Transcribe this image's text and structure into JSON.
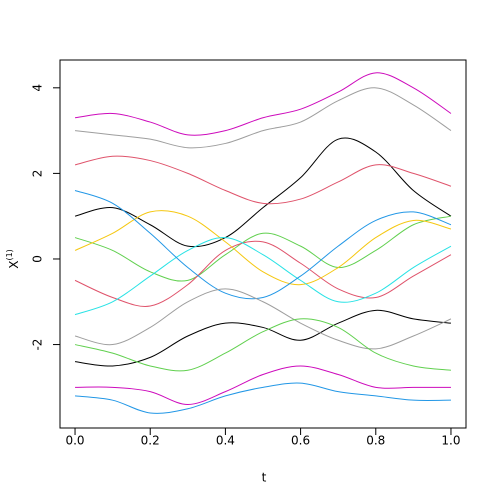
{
  "chart_data": {
    "type": "line",
    "x_label": "t",
    "y_label": "X",
    "y_label_sup": "(1)",
    "x": [
      0,
      0.1,
      0.2,
      0.3,
      0.4,
      0.5,
      0.6,
      0.7,
      0.8,
      0.9,
      1.0
    ],
    "xlim": [
      -0.04,
      1.04
    ],
    "xticks": [
      {
        "value": 0,
        "label": "0.0"
      },
      {
        "value": 0.2,
        "label": "0.2"
      },
      {
        "value": 0.4,
        "label": "0.4"
      },
      {
        "value": 0.6,
        "label": "0.6"
      },
      {
        "value": 0.8,
        "label": "0.8"
      },
      {
        "value": 1,
        "label": "1.0"
      }
    ],
    "ylim": [
      -3.95,
      4.65
    ],
    "yticks": [
      -2,
      0,
      2,
      4
    ],
    "series": [
      {
        "color": "#CD0BBC",
        "values": [
          3.3,
          3.4,
          3.2,
          2.9,
          3.0,
          3.3,
          3.5,
          3.9,
          4.35,
          4.0,
          3.4
        ]
      },
      {
        "color": "#9E9E9E",
        "values": [
          3.0,
          2.9,
          2.8,
          2.6,
          2.7,
          3.0,
          3.2,
          3.7,
          4.0,
          3.6,
          3.0
        ]
      },
      {
        "color": "#2297E6",
        "values": [
          -3.2,
          -3.3,
          -3.6,
          -3.5,
          -3.2,
          -3.0,
          -2.9,
          -3.1,
          -3.2,
          -3.3,
          -3.3
        ]
      },
      {
        "color": "#CD0BBC",
        "values": [
          -3.0,
          -3.0,
          -3.1,
          -3.4,
          -3.1,
          -2.7,
          -2.5,
          -2.7,
          -3.0,
          -3.0,
          -3.0
        ]
      },
      {
        "color": "#000000",
        "values": [
          -2.4,
          -2.5,
          -2.3,
          -1.8,
          -1.5,
          -1.6,
          -1.9,
          -1.5,
          -1.2,
          -1.4,
          -1.5
        ]
      },
      {
        "color": "#000000",
        "values": [
          1.0,
          1.2,
          0.8,
          0.3,
          0.5,
          1.2,
          1.9,
          2.8,
          2.5,
          1.6,
          1.0
        ]
      },
      {
        "color": "#61D04F",
        "values": [
          0.5,
          0.2,
          -0.3,
          -0.5,
          0.1,
          0.6,
          0.3,
          -0.2,
          0.2,
          0.8,
          1.0
        ]
      },
      {
        "color": "#DF536B",
        "values": [
          -0.5,
          -0.9,
          -1.1,
          -0.6,
          0.2,
          0.4,
          -0.1,
          -0.7,
          -0.9,
          -0.4,
          0.1
        ]
      },
      {
        "color": "#F5C710",
        "values": [
          0.2,
          0.6,
          1.1,
          1.0,
          0.4,
          -0.3,
          -0.6,
          -0.2,
          0.5,
          0.9,
          0.7
        ]
      },
      {
        "color": "#28E2E5",
        "values": [
          -1.3,
          -1.0,
          -0.4,
          0.2,
          0.5,
          0.1,
          -0.5,
          -1.0,
          -0.8,
          -0.2,
          0.3
        ]
      },
      {
        "color": "#2297E6",
        "values": [
          1.6,
          1.3,
          0.6,
          -0.2,
          -0.8,
          -0.9,
          -0.4,
          0.3,
          0.9,
          1.1,
          0.8
        ]
      },
      {
        "color": "#9E9E9E",
        "values": [
          -1.8,
          -2.0,
          -1.6,
          -1.0,
          -0.7,
          -1.0,
          -1.5,
          -1.9,
          -2.1,
          -1.8,
          -1.4
        ]
      },
      {
        "color": "#DF536B",
        "values": [
          2.2,
          2.4,
          2.3,
          2.0,
          1.6,
          1.3,
          1.4,
          1.8,
          2.2,
          2.0,
          1.7
        ]
      },
      {
        "color": "#61D04F",
        "values": [
          -2.0,
          -2.2,
          -2.5,
          -2.6,
          -2.2,
          -1.7,
          -1.4,
          -1.6,
          -2.2,
          -2.5,
          -2.6
        ]
      }
    ]
  }
}
